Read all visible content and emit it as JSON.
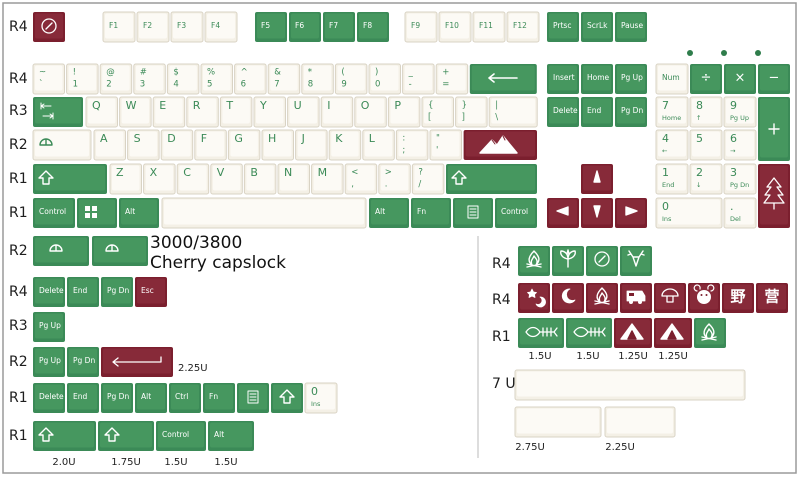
{
  "row_labels": {
    "main": [
      "R4",
      "R4",
      "R3",
      "R2",
      "R1",
      "R1"
    ],
    "extras": [
      "R2",
      "R4",
      "R3",
      "R2",
      "R1",
      "R1"
    ],
    "novelties": [
      "R4",
      "R4",
      "R1",
      "7 U"
    ]
  },
  "function_row": [
    "F1",
    "F2",
    "F3",
    "F4",
    "F5",
    "F6",
    "F7",
    "F8",
    "F9",
    "F10",
    "F11",
    "F12",
    "Prtsc",
    "ScrLk",
    "Pause"
  ],
  "number_row": [
    [
      "~",
      "`"
    ],
    [
      "!",
      "1"
    ],
    [
      "@",
      "2"
    ],
    [
      "#",
      "3"
    ],
    [
      "$",
      "4"
    ],
    [
      "%",
      "5"
    ],
    [
      "^",
      "6"
    ],
    [
      "&",
      "7"
    ],
    [
      "*",
      "8"
    ],
    [
      "(",
      "9"
    ],
    [
      ")",
      "0"
    ],
    [
      "_",
      "-"
    ],
    [
      "+",
      "="
    ]
  ],
  "top_row": [
    "Q",
    "W",
    "E",
    "R",
    "T",
    "Y",
    "U",
    "I",
    "O",
    "P"
  ],
  "top_row_symbols": [
    [
      "{",
      "["
    ],
    [
      "}",
      "]"
    ],
    [
      "|",
      "\\"
    ]
  ],
  "home_row": [
    "A",
    "S",
    "D",
    "F",
    "G",
    "H",
    "J",
    "K",
    "L"
  ],
  "home_row_symbols": [
    [
      ":",
      ";"
    ],
    [
      "\"",
      "'"
    ]
  ],
  "bottom_row": [
    "Z",
    "X",
    "C",
    "V",
    "B",
    "N",
    "M"
  ],
  "bottom_row_symbols": [
    [
      "<",
      ","
    ],
    [
      ">",
      "."
    ],
    [
      "?",
      "/"
    ]
  ],
  "space_row": [
    "Control",
    "Alt",
    "Alt",
    "Fn",
    "Control"
  ],
  "navigation": [
    "Insert",
    "Home",
    "Pg Up",
    "Delete",
    "End",
    "Pg Dn"
  ],
  "numpad": {
    "operators": [
      "Num",
      "÷",
      "×",
      "−"
    ],
    "keys": [
      [
        "7",
        "Home"
      ],
      [
        "8",
        "↑"
      ],
      [
        "9",
        "Pg Up"
      ],
      [
        "4",
        "←"
      ],
      [
        "5"
      ],
      [
        "6",
        "→"
      ],
      [
        "1",
        "End"
      ],
      [
        "2",
        "↓"
      ],
      [
        "3",
        "Pg Dn"
      ],
      [
        "0",
        "Ins"
      ],
      [
        ".",
        "Del"
      ]
    ]
  },
  "extras": {
    "caption": [
      "3000/3800",
      "Cherry capslock"
    ],
    "r4": [
      "Delete",
      "End",
      "Pg Dn",
      "Esc"
    ],
    "r3": [
      "Pg Up"
    ],
    "r2": [
      "Pg Up",
      "Pg Dn"
    ],
    "r2_size": "2.25U",
    "r1a": [
      "Delete",
      "End",
      "Pg Dn",
      "Alt",
      "Ctrl",
      "Fn"
    ],
    "r1a_numpad": [
      "0",
      "Ins"
    ],
    "r1b": [
      "Control",
      "Alt"
    ],
    "r1b_sizes": [
      "2.0U",
      "1.75U",
      "1.5U",
      "1.5U"
    ]
  },
  "novelties": {
    "kanji": [
      "野",
      "营"
    ],
    "r1_sizes": [
      "1.5U",
      "1.5U",
      "1.25U",
      "1.25U"
    ],
    "space_sizes": [
      "2.75U",
      "2.25U"
    ]
  }
}
